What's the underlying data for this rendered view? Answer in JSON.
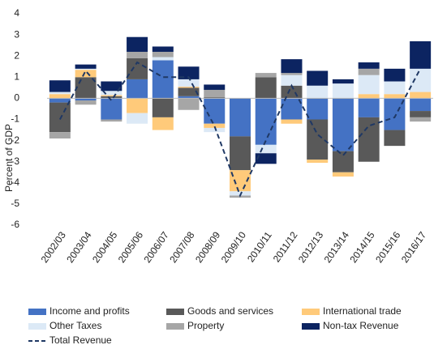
{
  "chart_data": {
    "type": "bar",
    "stacked": true,
    "y_label": "Percent of GDP",
    "categories": [
      "2002/03",
      "2003/04",
      "2004/05",
      "2005/06",
      "2006/07",
      "2007/08",
      "2008/09",
      "2009/10",
      "2010/11",
      "2011/12",
      "2012/13",
      "2013/14",
      "2014/15",
      "2015/16",
      "2016/17"
    ],
    "ylim": [
      -6,
      4
    ],
    "yticks": [
      -6,
      -5,
      -4,
      -3,
      -2,
      -1,
      0,
      1,
      2,
      3,
      4
    ],
    "grid": false,
    "series": [
      {
        "name": "Income and profits",
        "color": "#4472c4",
        "values": [
          -0.2,
          -0.1,
          -1.0,
          0.9,
          1.8,
          0.1,
          -1.2,
          -1.8,
          -2.2,
          -1.0,
          -1.0,
          -2.5,
          -0.9,
          -1.5,
          -0.6
        ]
      },
      {
        "name": "Goods and services",
        "color": "#595959",
        "values": [
          -1.4,
          1.0,
          0.1,
          1.0,
          -0.9,
          0.4,
          0.05,
          -1.6,
          1.0,
          0.6,
          -1.9,
          -1.0,
          -2.1,
          -0.75,
          -0.3
        ]
      },
      {
        "name": "International trade",
        "color": "#ffca7a",
        "values": [
          0.2,
          0.35,
          0.05,
          -0.7,
          -0.6,
          0.05,
          -0.2,
          -1.0,
          0.0,
          -0.2,
          -0.15,
          -0.2,
          0.2,
          0.2,
          0.3
        ]
      },
      {
        "name": "Other Taxes",
        "color": "#dce9f6",
        "values": [
          0.1,
          0.05,
          0.2,
          -0.5,
          0.15,
          0.35,
          -0.2,
          -0.2,
          -0.4,
          0.5,
          0.6,
          0.7,
          0.9,
          0.6,
          1.1
        ]
      },
      {
        "name": "Property",
        "color": "#a6a6a6",
        "values": [
          -0.3,
          -0.2,
          -0.1,
          0.3,
          0.25,
          -0.55,
          0.35,
          -0.1,
          0.2,
          0.1,
          0.0,
          0.0,
          0.3,
          0.0,
          -0.2
        ]
      },
      {
        "name": "Non-tax Revenue",
        "color": "#0c2461",
        "values": [
          0.55,
          0.2,
          0.45,
          0.7,
          0.25,
          0.6,
          0.25,
          0.0,
          -0.5,
          0.65,
          0.7,
          0.2,
          0.3,
          0.6,
          1.3
        ]
      }
    ],
    "line": {
      "name": "Total Revenue",
      "color": "#1f3864",
      "values": [
        -1.0,
        1.3,
        -0.1,
        1.7,
        1.0,
        1.0,
        -1.3,
        -4.6,
        -2.0,
        0.6,
        -1.7,
        -2.7,
        -1.3,
        -0.9,
        1.4
      ]
    }
  }
}
